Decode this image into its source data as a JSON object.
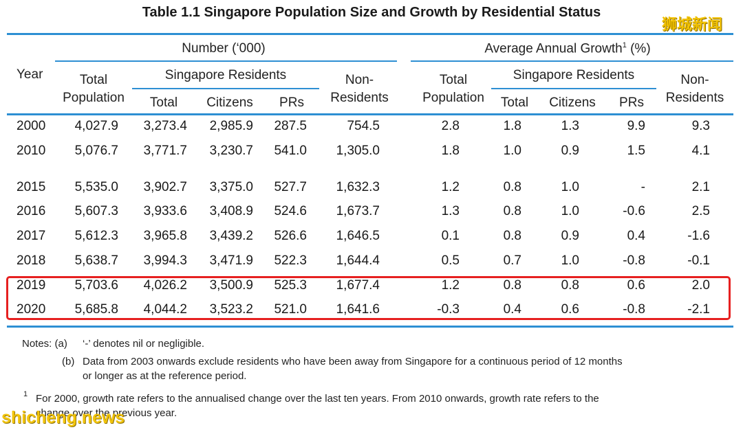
{
  "title": "Table 1.1  Singapore Population Size and Growth by Residential Status",
  "watermark_top": "狮城新闻",
  "watermark_bottom": "shicheng.news",
  "header": {
    "number_group": "Number (‘000)",
    "growth_group": "Average Annual Growth",
    "growth_sup": "1",
    "growth_unit": "(%)",
    "year": "Year",
    "total_pop_line1": "Total",
    "total_pop_line2": "Population",
    "sg_residents": "Singapore Residents",
    "non_res_line1": "Non-",
    "non_res_line2": "Residents",
    "total": "Total",
    "citizens": "Citizens",
    "prs": "PRs"
  },
  "rows": [
    {
      "year": "2000",
      "tp": "4,027.9",
      "rt": "3,273.4",
      "ci": "2,985.9",
      "pr": "287.5",
      "nr": "754.5",
      "gtp": "2.8",
      "grt": "1.8",
      "gci": "1.3",
      "gpr": "9.9",
      "gnr": "9.3"
    },
    {
      "year": "2010",
      "tp": "5,076.7",
      "rt": "3,771.7",
      "ci": "3,230.7",
      "pr": "541.0",
      "nr": "1,305.0",
      "gtp": "1.8",
      "grt": "1.0",
      "gci": "0.9",
      "gpr": "1.5",
      "gnr": "4.1"
    },
    {
      "year": "2015",
      "tp": "5,535.0",
      "rt": "3,902.7",
      "ci": "3,375.0",
      "pr": "527.7",
      "nr": "1,632.3",
      "gtp": "1.2",
      "grt": "0.8",
      "gci": "1.0",
      "gpr": "-",
      "gnr": "2.1"
    },
    {
      "year": "2016",
      "tp": "5,607.3",
      "rt": "3,933.6",
      "ci": "3,408.9",
      "pr": "524.6",
      "nr": "1,673.7",
      "gtp": "1.3",
      "grt": "0.8",
      "gci": "1.0",
      "gpr": "-0.6",
      "gnr": "2.5"
    },
    {
      "year": "2017",
      "tp": "5,612.3",
      "rt": "3,965.8",
      "ci": "3,439.2",
      "pr": "526.6",
      "nr": "1,646.5",
      "gtp": "0.1",
      "grt": "0.8",
      "gci": "0.9",
      "gpr": "0.4",
      "gnr": "-1.6"
    },
    {
      "year": "2018",
      "tp": "5,638.7",
      "rt": "3,994.3",
      "ci": "3,471.9",
      "pr": "522.3",
      "nr": "1,644.4",
      "gtp": "0.5",
      "grt": "0.7",
      "gci": "1.0",
      "gpr": "-0.8",
      "gnr": "-0.1"
    },
    {
      "year": "2019",
      "tp": "5,703.6",
      "rt": "4,026.2",
      "ci": "3,500.9",
      "pr": "525.3",
      "nr": "1,677.4",
      "gtp": "1.2",
      "grt": "0.8",
      "gci": "0.8",
      "gpr": "0.6",
      "gnr": "2.0"
    },
    {
      "year": "2020",
      "tp": "5,685.8",
      "rt": "4,044.2",
      "ci": "3,523.2",
      "pr": "521.0",
      "nr": "1,641.6",
      "gtp": "-0.3",
      "grt": "0.4",
      "gci": "0.6",
      "gpr": "-0.8",
      "gnr": "-2.1"
    }
  ],
  "notes": {
    "label": "Notes: (a)",
    "a": "‘-’ denotes nil or negligible.",
    "b_label": "(b)",
    "b_line1": "Data from 2003 onwards exclude residents who have been away from Singapore for a continuous period of 12 months",
    "b_line2": "or longer as at the reference period.",
    "fn_sup": "1",
    "fn_line1": "For 2000, growth rate refers to the annualised change over the last ten years. From 2010 onwards, growth rate refers to the",
    "fn_line2": "change over the previous year."
  },
  "colors": {
    "rule": "#2d8fd3",
    "highlight": "#e62020",
    "watermark": "#f2c200"
  }
}
